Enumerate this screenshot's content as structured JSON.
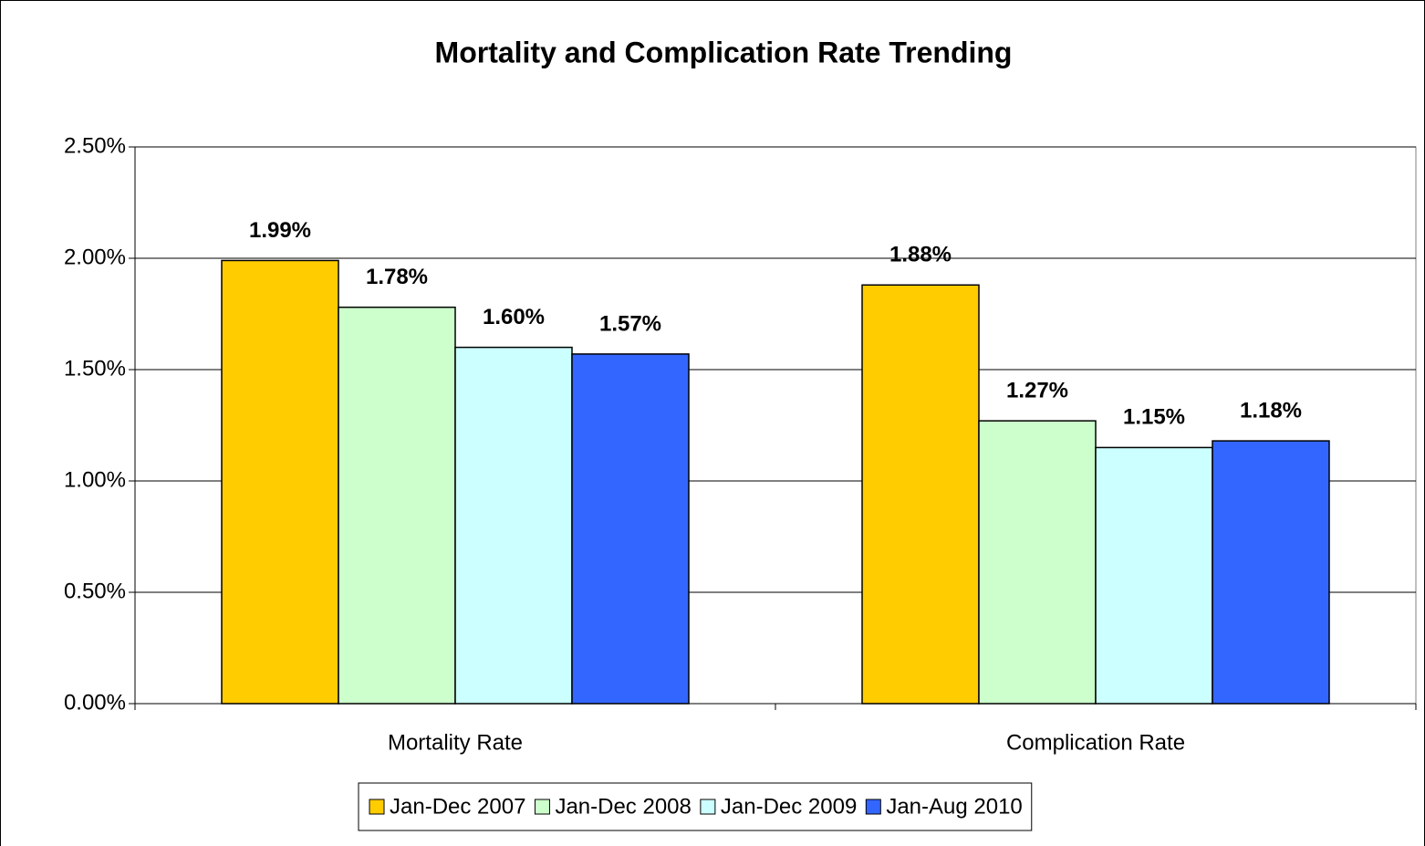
{
  "chart_data": {
    "type": "bar",
    "title": "Mortality and Complication Rate Trending",
    "categories": [
      "Mortality Rate",
      "Complication Rate"
    ],
    "series": [
      {
        "name": "Jan-Dec 2007",
        "color": "#FFCC00",
        "values": [
          1.99,
          1.88
        ],
        "value_labels": [
          "1.99%",
          "1.88%"
        ]
      },
      {
        "name": "Jan-Dec 2008",
        "color": "#CCFFCC",
        "values": [
          1.78,
          1.27
        ],
        "value_labels": [
          "1.78%",
          "1.27%"
        ]
      },
      {
        "name": "Jan-Dec 2009",
        "color": "#CCFFFF",
        "values": [
          1.6,
          1.15
        ],
        "value_labels": [
          "1.60%",
          "1.15%"
        ]
      },
      {
        "name": "Jan-Aug 2010",
        "color": "#3366FF",
        "values": [
          1.57,
          1.18
        ],
        "value_labels": [
          "1.57%",
          "1.18%"
        ]
      }
    ],
    "ylim": [
      0,
      2.5
    ],
    "yticks": [
      {
        "value": 0,
        "label": "0.00%"
      },
      {
        "value": 0.5,
        "label": "0.50%"
      },
      {
        "value": 1,
        "label": "1.00%"
      },
      {
        "value": 1.5,
        "label": "1.50%"
      },
      {
        "value": 2,
        "label": "2.00%"
      },
      {
        "value": 2.5,
        "label": "2.50%"
      }
    ],
    "grid": true,
    "legend": "bottom"
  }
}
